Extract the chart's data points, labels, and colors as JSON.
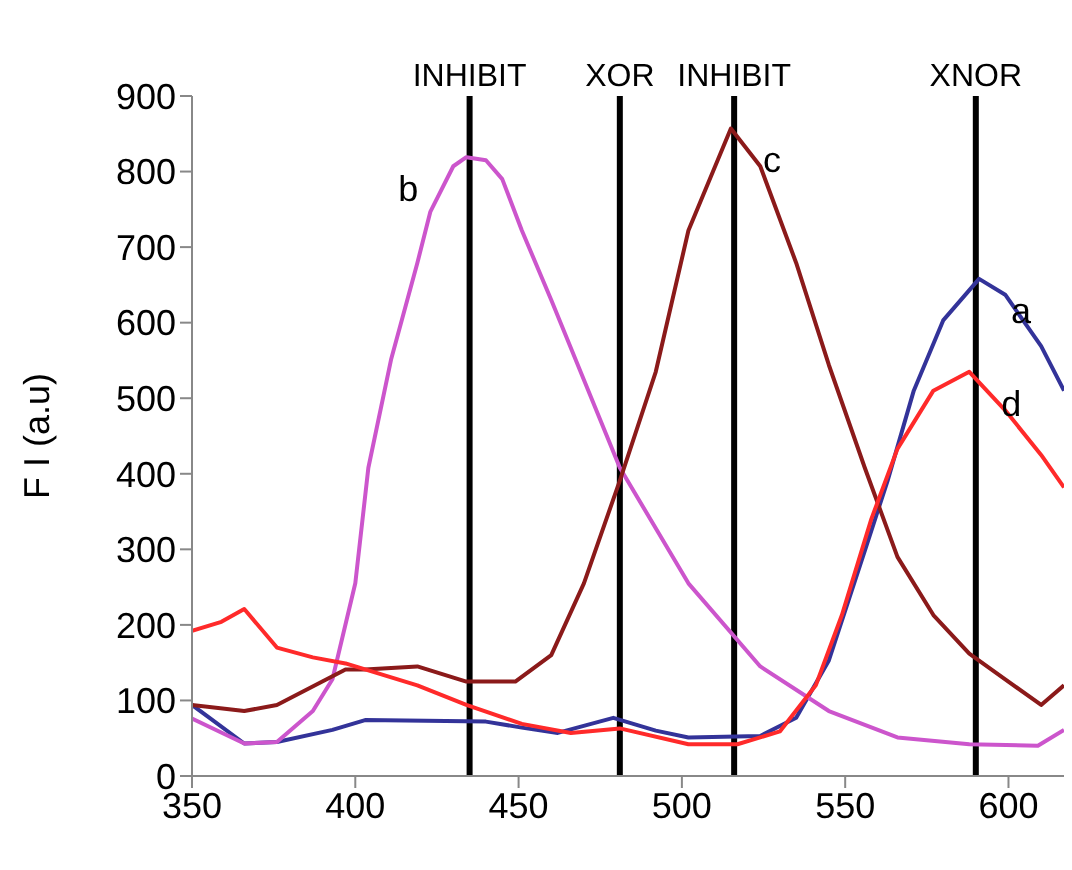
{
  "chart_data": {
    "type": "line",
    "ylabel": "F I (a.u)",
    "xlim": [
      350,
      617
    ],
    "xticks": [
      350,
      400,
      450,
      500,
      550,
      600
    ],
    "ylim": [
      0,
      900
    ],
    "yticks": [
      0,
      100,
      200,
      300,
      400,
      500,
      600,
      700,
      800,
      900
    ],
    "grid": false,
    "legend": false,
    "marker": "none",
    "line_style": "solid",
    "series": [
      {
        "name": "a",
        "color": "#333399",
        "x": [
          350,
          366,
          376,
          393,
          403,
          440,
          451,
          462,
          479,
          492,
          502,
          524,
          535,
          545,
          556,
          563,
          571,
          580,
          591,
          599,
          610,
          617
        ],
        "values": [
          94,
          43,
          45,
          61,
          74,
          72,
          64,
          57,
          77,
          60,
          51,
          53,
          77,
          153,
          298,
          391,
          510,
          603,
          658,
          637,
          569,
          510
        ]
      },
      {
        "name": "b",
        "color": "#cc55cc",
        "x": [
          350,
          366,
          376,
          387,
          393,
          400,
          404,
          411,
          419,
          423,
          430,
          434,
          440,
          445,
          451,
          460,
          481,
          502,
          524,
          545,
          566,
          588,
          609,
          617
        ],
        "values": [
          76,
          43,
          45,
          86,
          128,
          255,
          408,
          552,
          679,
          747,
          807,
          819,
          815,
          790,
          722,
          630,
          408,
          255,
          145,
          86,
          51,
          42,
          40,
          61
        ]
      },
      {
        "name": "c",
        "color": "#8b1a1a",
        "x": [
          350,
          366,
          376,
          397,
          403,
          419,
          434,
          449,
          460,
          470,
          481,
          492,
          502,
          515,
          524,
          535,
          545,
          556,
          566,
          577,
          588,
          599,
          610,
          617
        ],
        "values": [
          94,
          86,
          94,
          141,
          141,
          145,
          125,
          125,
          160,
          255,
          391,
          535,
          722,
          857,
          807,
          679,
          544,
          408,
          290,
          213,
          162,
          128,
          94,
          120
        ]
      },
      {
        "name": "d",
        "color": "#ff2a2a",
        "x": [
          350,
          359,
          366,
          376,
          387,
          397,
          419,
          434,
          451,
          466,
          481,
          502,
          517,
          530,
          541,
          549,
          558,
          566,
          577,
          588,
          599,
          610,
          617
        ],
        "values": [
          192,
          204,
          221,
          170,
          157,
          149,
          120,
          94,
          69,
          57,
          63,
          42,
          42,
          59,
          120,
          213,
          340,
          433,
          510,
          535,
          484,
          425,
          382
        ]
      }
    ],
    "ref_lines": [
      {
        "axis": "x",
        "value": 435,
        "label": "INHIBIT",
        "color": "#000000"
      },
      {
        "axis": "x",
        "value": 481,
        "label": "XOR",
        "color": "#000000"
      },
      {
        "axis": "x",
        "value": 516,
        "label": "INHIBIT",
        "color": "#000000"
      },
      {
        "axis": "x",
        "value": 590,
        "label": "XNOR",
        "color": "#000000"
      }
    ]
  }
}
